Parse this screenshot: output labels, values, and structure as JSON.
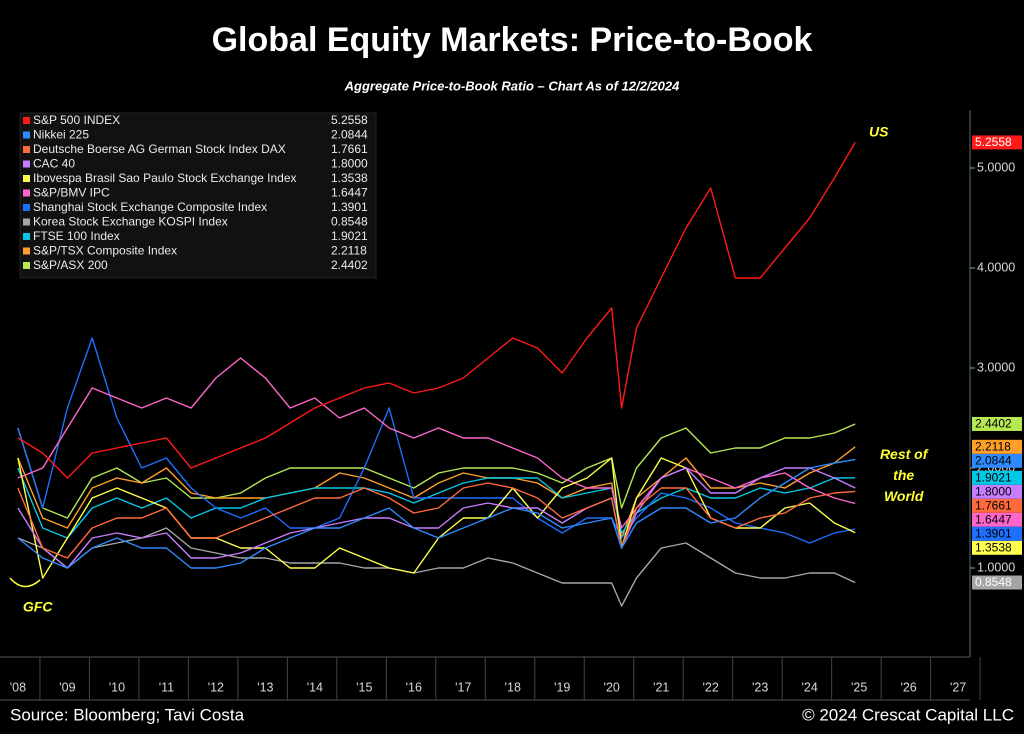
{
  "chart_data": {
    "type": "line",
    "title": "Global Equity Markets: Price-to-Book",
    "subtitle": "Aggregate Price-to-Book Ratio – Chart As of 12/2/2024",
    "source": "Source: Bloomberg; Tavi Costa",
    "copyright": "© 2024 Crescat Capital LLC",
    "annotations": [
      {
        "text": "US",
        "x": 2025.2,
        "y": 5.35
      },
      {
        "text": "Rest of the World",
        "x": 2025.9,
        "y": 1.9
      },
      {
        "text": "GFC",
        "x": 2008.1,
        "y": 0.6
      }
    ],
    "x": [
      2008,
      2008.5,
      2009,
      2009.5,
      2010,
      2010.5,
      2011,
      2011.5,
      2012,
      2012.5,
      2013,
      2013.5,
      2014,
      2014.5,
      2015,
      2015.5,
      2016,
      2016.5,
      2017,
      2017.5,
      2018,
      2018.5,
      2019,
      2019.5,
      2020,
      2020.2,
      2020.5,
      2021,
      2021.5,
      2022,
      2022.5,
      2023,
      2023.5,
      2024,
      2024.5,
      2024.92
    ],
    "xlim": [
      2007.9,
      2027.2
    ],
    "xticks": [
      {
        "value": 2008,
        "label": "'08"
      },
      {
        "value": 2009,
        "label": "'09"
      },
      {
        "value": 2010,
        "label": "'10"
      },
      {
        "value": 2011,
        "label": "'11"
      },
      {
        "value": 2012,
        "label": "'12"
      },
      {
        "value": 2013,
        "label": "'13"
      },
      {
        "value": 2014,
        "label": "'14"
      },
      {
        "value": 2015,
        "label": "'15"
      },
      {
        "value": 2016,
        "label": "'16"
      },
      {
        "value": 2017,
        "label": "'17"
      },
      {
        "value": 2018,
        "label": "'18"
      },
      {
        "value": 2019,
        "label": "'19"
      },
      {
        "value": 2020,
        "label": "'20"
      },
      {
        "value": 2021,
        "label": "'21"
      },
      {
        "value": 2022,
        "label": "'22"
      },
      {
        "value": 2023,
        "label": "'23"
      },
      {
        "value": 2024,
        "label": "'24"
      },
      {
        "value": 2025,
        "label": "'25"
      },
      {
        "value": 2026,
        "label": "'26"
      },
      {
        "value": 2027,
        "label": "'27"
      }
    ],
    "ylim": [
      0.11,
      5.53
    ],
    "yticks": [
      {
        "value": 1,
        "label": "1.0000"
      },
      {
        "value": 2,
        "label": "2.0000"
      },
      {
        "value": 3,
        "label": "3.0000"
      },
      {
        "value": 4,
        "label": "4.0000"
      },
      {
        "value": 5,
        "label": "5.0000"
      }
    ],
    "grid": false,
    "legend": "upper left",
    "series": [
      {
        "name": "S&P 500 INDEX",
        "color": "#ff1a1a",
        "end_label": "5.2558",
        "values": [
          2.3,
          2.15,
          1.9,
          2.15,
          2.2,
          2.25,
          2.3,
          2.0,
          2.1,
          2.2,
          2.3,
          2.45,
          2.6,
          2.7,
          2.8,
          2.85,
          2.75,
          2.8,
          2.9,
          3.1,
          3.3,
          3.2,
          2.95,
          3.3,
          3.6,
          2.6,
          3.4,
          3.9,
          4.4,
          4.8,
          3.9,
          3.9,
          4.2,
          4.5,
          4.9,
          5.2558
        ]
      },
      {
        "name": "Nikkei 225",
        "color": "#2e8bff",
        "end_label": "2.0844",
        "values": [
          1.3,
          1.1,
          1.0,
          1.2,
          1.3,
          1.2,
          1.2,
          1.0,
          1.0,
          1.05,
          1.2,
          1.3,
          1.4,
          1.4,
          1.5,
          1.6,
          1.4,
          1.3,
          1.4,
          1.5,
          1.6,
          1.55,
          1.4,
          1.45,
          1.5,
          1.2,
          1.45,
          1.6,
          1.6,
          1.45,
          1.5,
          1.7,
          1.85,
          2.0,
          2.05,
          2.0844
        ]
      },
      {
        "name": "Deutsche Boerse AG German Stock Index DAX",
        "color": "#ff6a3d",
        "end_label": "1.7661",
        "values": [
          1.8,
          1.2,
          1.1,
          1.4,
          1.5,
          1.5,
          1.6,
          1.3,
          1.3,
          1.4,
          1.5,
          1.6,
          1.7,
          1.7,
          1.8,
          1.7,
          1.55,
          1.6,
          1.8,
          1.85,
          1.8,
          1.7,
          1.5,
          1.6,
          1.7,
          1.2,
          1.6,
          1.8,
          1.8,
          1.5,
          1.4,
          1.5,
          1.55,
          1.7,
          1.75,
          1.7661
        ]
      },
      {
        "name": "CAC 40",
        "color": "#c77dff",
        "end_label": "1.8000",
        "values": [
          1.6,
          1.2,
          1.0,
          1.3,
          1.35,
          1.3,
          1.35,
          1.1,
          1.1,
          1.15,
          1.25,
          1.35,
          1.4,
          1.45,
          1.5,
          1.5,
          1.4,
          1.4,
          1.6,
          1.65,
          1.6,
          1.6,
          1.45,
          1.6,
          1.7,
          1.2,
          1.55,
          1.9,
          2.0,
          1.75,
          1.75,
          1.9,
          2.0,
          2.0,
          1.9,
          1.8
        ]
      },
      {
        "name": "Ibovespa Brasil Sao Paulo Stock Exchange Index",
        "color": "#ffff4d",
        "end_label": "1.3538",
        "values": [
          2.1,
          0.9,
          1.3,
          1.7,
          1.8,
          1.7,
          1.6,
          1.3,
          1.3,
          1.2,
          1.2,
          1.0,
          1.0,
          1.2,
          1.1,
          1.0,
          0.95,
          1.3,
          1.5,
          1.5,
          1.8,
          1.5,
          1.8,
          1.9,
          2.1,
          1.2,
          1.7,
          2.1,
          2.0,
          1.5,
          1.4,
          1.4,
          1.6,
          1.65,
          1.45,
          1.3538
        ]
      },
      {
        "name": "S&P/BMV IPC",
        "color": "#ff66cc",
        "end_label": "1.6447",
        "values": [
          1.9,
          2.0,
          2.4,
          2.8,
          2.7,
          2.6,
          2.7,
          2.6,
          2.9,
          3.1,
          2.9,
          2.6,
          2.7,
          2.5,
          2.6,
          2.4,
          2.3,
          2.4,
          2.3,
          2.3,
          2.2,
          2.1,
          1.9,
          1.8,
          1.8,
          1.4,
          1.6,
          1.9,
          2.0,
          1.9,
          1.8,
          1.9,
          1.95,
          1.8,
          1.7,
          1.6447
        ]
      },
      {
        "name": "Shanghai Stock Exchange Composite Index",
        "color": "#1f6fff",
        "end_label": "1.3901",
        "values": [
          2.4,
          1.6,
          2.6,
          3.3,
          2.5,
          2.0,
          2.1,
          1.8,
          1.6,
          1.5,
          1.6,
          1.4,
          1.4,
          1.5,
          2.0,
          2.6,
          1.7,
          1.7,
          1.7,
          1.7,
          1.7,
          1.5,
          1.35,
          1.5,
          1.5,
          1.3,
          1.5,
          1.75,
          1.7,
          1.6,
          1.45,
          1.4,
          1.35,
          1.25,
          1.35,
          1.3901
        ]
      },
      {
        "name": "Korea Stock Exchange KOSPI Index",
        "color": "#a6a6a6",
        "end_label": "0.8548",
        "values": [
          1.3,
          1.2,
          1.0,
          1.2,
          1.25,
          1.3,
          1.4,
          1.2,
          1.15,
          1.1,
          1.1,
          1.05,
          1.05,
          1.05,
          1.0,
          1.0,
          0.95,
          1.0,
          1.0,
          1.1,
          1.05,
          0.95,
          0.85,
          0.85,
          0.85,
          0.62,
          0.9,
          1.2,
          1.25,
          1.1,
          0.95,
          0.9,
          0.9,
          0.95,
          0.95,
          0.8548
        ]
      },
      {
        "name": "FTSE 100 Index",
        "color": "#00c8e6",
        "end_label": "1.9021",
        "values": [
          2.0,
          1.4,
          1.3,
          1.6,
          1.7,
          1.6,
          1.7,
          1.5,
          1.6,
          1.6,
          1.7,
          1.75,
          1.8,
          1.8,
          1.8,
          1.75,
          1.65,
          1.75,
          1.85,
          1.9,
          1.9,
          1.9,
          1.7,
          1.75,
          1.8,
          1.35,
          1.55,
          1.7,
          1.8,
          1.7,
          1.7,
          1.8,
          1.75,
          1.8,
          1.9,
          1.9021
        ]
      },
      {
        "name": "S&P/TSX Composite Index",
        "color": "#ff9f2a",
        "end_label": "2.2118",
        "values": [
          2.1,
          1.5,
          1.4,
          1.8,
          1.9,
          1.85,
          2.0,
          1.75,
          1.7,
          1.7,
          1.7,
          1.75,
          1.8,
          1.95,
          1.9,
          1.8,
          1.7,
          1.85,
          1.95,
          1.9,
          1.9,
          1.85,
          1.7,
          1.8,
          1.85,
          1.3,
          1.7,
          1.9,
          2.1,
          1.8,
          1.8,
          1.85,
          1.8,
          1.95,
          2.05,
          2.2118
        ]
      },
      {
        "name": "S&P/ASX 200",
        "color": "#b5e853",
        "end_label": "2.4402",
        "values": [
          2.4,
          1.6,
          1.5,
          1.9,
          2.0,
          1.85,
          1.9,
          1.7,
          1.7,
          1.75,
          1.9,
          2.0,
          2.0,
          2.0,
          2.0,
          1.9,
          1.8,
          1.95,
          2.0,
          2.0,
          2.0,
          1.95,
          1.85,
          2.0,
          2.1,
          1.6,
          2.0,
          2.3,
          2.4,
          2.15,
          2.2,
          2.2,
          2.3,
          2.3,
          2.35,
          2.4402
        ]
      }
    ]
  }
}
